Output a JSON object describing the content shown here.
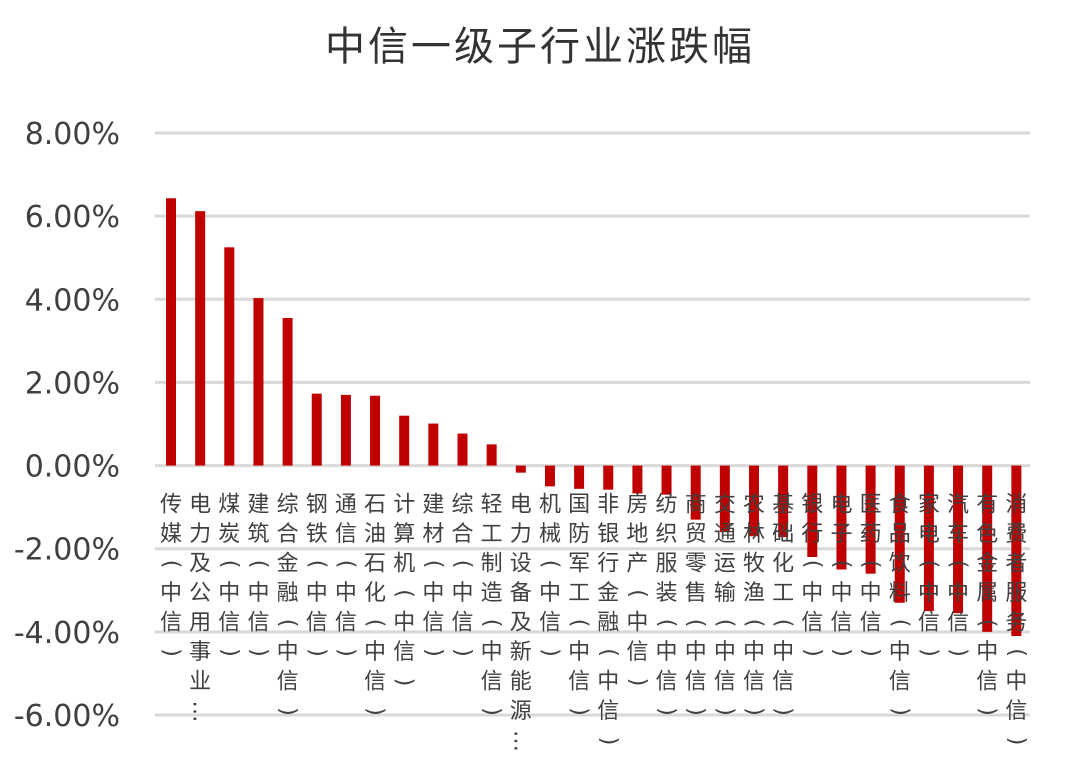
{
  "chart_data": {
    "type": "bar",
    "title": "中信一级子行业涨跌幅",
    "xlabel": "",
    "ylabel": "",
    "ylim": [
      -0.06,
      0.08
    ],
    "ytick_labels": [
      "8.00%",
      "6.00%",
      "4.00%",
      "2.00%",
      "0.00%",
      "-2.00%",
      "-4.00%",
      "-6.00%"
    ],
    "grid": true,
    "bar_color": "#C00000",
    "categories": [
      "传媒(中信)",
      "电力及公用事业…",
      "煤炭(中信)",
      "建筑(中信)",
      "综合金融(中信)",
      "钢铁(中信)",
      "通信(中信)",
      "石油石化(中信)",
      "计算机(中信)",
      "建材(中信)",
      "综合(中信)",
      "轻工制造(中信)",
      "电力设备及新能源…",
      "机械(中信)",
      "国防军工(中信)",
      "非银行金融(中信)",
      "房地产(中信)",
      "纺织服装(中信)",
      "商贸零售(中信)",
      "交通运输(中信)",
      "农林牧渔(中信)",
      "基础化工(中信)",
      "银行(中信)",
      "电子(中信)",
      "医药(中信)",
      "食品饮料(中信)",
      "家电(中信)",
      "汽车(中信)",
      "有色金属(中信)",
      "消费者服务(中信)"
    ],
    "values": [
      0.0643,
      0.0612,
      0.0525,
      0.0403,
      0.0355,
      0.0173,
      0.017,
      0.0168,
      0.012,
      0.0101,
      0.0077,
      0.0051,
      -0.0017,
      -0.005,
      -0.0056,
      -0.0058,
      -0.0067,
      -0.007,
      -0.013,
      -0.016,
      -0.017,
      -0.0172,
      -0.022,
      -0.025,
      -0.026,
      -0.033,
      -0.035,
      -0.0355,
      -0.04,
      -0.041
    ]
  }
}
